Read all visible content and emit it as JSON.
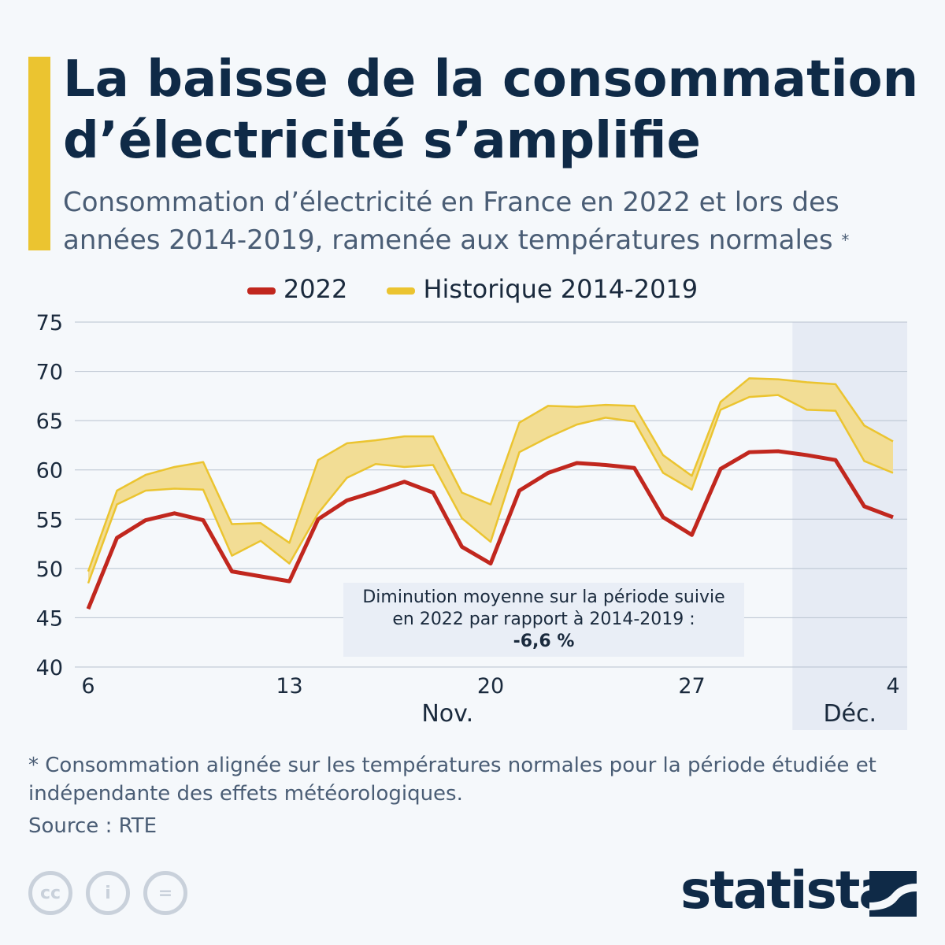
{
  "title": "La baisse de la consommation d’électricité s’amplifie",
  "subtitle": "Consommation d’électricité en France en 2022 et lors des années 2014-2019, ramenée aux températures normales",
  "subtitle_mark": "*",
  "footnote": "* Consommation alignée sur les températures normales pour la période étudiée et indépendante des effets météorologiques.",
  "source": "Source : RTE",
  "brand": "statista",
  "license_icons": [
    "cc-icon",
    "attribution-icon",
    "no-derivatives-icon"
  ],
  "colors": {
    "series_2022": "#c1271e",
    "historique": "#ebc430",
    "historique_fill": "#f2dd95",
    "title": "#0f2a47",
    "highlight": "#e6ebf4"
  },
  "annotation": {
    "line1": "Diminution moyenne sur la période suivie",
    "line2": "en 2022 par rapport à 2014-2019 :",
    "value": "-6,6 %"
  },
  "chart_data": {
    "type": "line",
    "x_ticks": [
      "6",
      "13",
      "20",
      "27",
      "4"
    ],
    "x_groups": [
      "Nov.",
      "Déc."
    ],
    "y_ticks": [
      40,
      45,
      50,
      55,
      60,
      65,
      70,
      75
    ],
    "ylim": [
      40,
      75
    ],
    "grid": true,
    "legend_placement": "top",
    "x": [
      "6 Nov.",
      "7 Nov.",
      "8 Nov.",
      "9 Nov.",
      "10 Nov.",
      "11 Nov.",
      "12 Nov.",
      "13 Nov.",
      "14 Nov.",
      "15 Nov.",
      "16 Nov.",
      "17 Nov.",
      "18 Nov.",
      "19 Nov.",
      "20 Nov.",
      "21 Nov.",
      "22 Nov.",
      "23 Nov.",
      "24 Nov.",
      "25 Nov.",
      "26 Nov.",
      "27 Nov.",
      "28 Nov.",
      "29 Nov.",
      "30 Nov.",
      "1 Déc.",
      "2 Déc.",
      "3 Déc.",
      "4 Déc."
    ],
    "series": [
      {
        "name": "2022",
        "values": [
          45.9,
          53.1,
          54.9,
          55.6,
          54.9,
          49.7,
          49.2,
          48.7,
          55.0,
          56.9,
          57.8,
          58.8,
          57.7,
          52.2,
          50.5,
          57.9,
          59.7,
          60.7,
          60.5,
          60.2,
          55.2,
          53.4,
          60.1,
          61.8,
          61.9,
          61.5,
          61.0,
          56.3,
          55.2
        ]
      },
      {
        "name": "Historique 2014-2019",
        "type": "range",
        "high": [
          49.7,
          57.9,
          59.5,
          60.3,
          60.8,
          54.5,
          54.6,
          52.6,
          61.0,
          62.7,
          63.0,
          63.4,
          63.4,
          57.7,
          56.5,
          64.8,
          66.5,
          66.4,
          66.6,
          66.5,
          61.5,
          59.4,
          66.9,
          69.3,
          69.2,
          68.9,
          68.7,
          64.5,
          62.9
        ],
        "low": [
          48.5,
          56.5,
          57.9,
          58.1,
          58.0,
          51.3,
          52.8,
          50.5,
          55.6,
          59.2,
          60.6,
          60.3,
          60.5,
          55.1,
          52.7,
          61.8,
          63.3,
          64.6,
          65.3,
          64.9,
          59.7,
          58.0,
          66.1,
          67.4,
          67.6,
          66.1,
          66.0,
          60.9,
          59.7
        ]
      }
    ],
    "highlighted_period": "Déc."
  }
}
